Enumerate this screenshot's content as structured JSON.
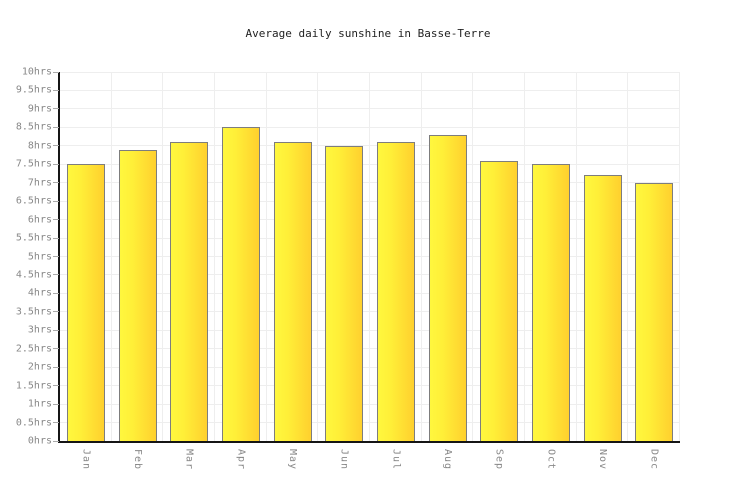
{
  "chart_data": {
    "type": "bar",
    "title": "Average daily sunshine in Basse-Terre",
    "categories": [
      "Jan",
      "Feb",
      "Mar",
      "Apr",
      "May",
      "Jun",
      "Jul",
      "Aug",
      "Sep",
      "Oct",
      "Nov",
      "Dec"
    ],
    "values": [
      7.5,
      7.9,
      8.1,
      8.5,
      8.1,
      8.0,
      8.1,
      8.3,
      7.6,
      7.5,
      7.2,
      7.0
    ],
    "unit_suffix": "hrs",
    "xlabel": "",
    "ylabel": "",
    "ylim": [
      0,
      10
    ],
    "ytick_step": 0.5,
    "grid": true,
    "legend": false,
    "colors": {
      "bar_fill_left": "#fff73e",
      "bar_fill_right": "#ffd02e",
      "bar_border": "#7d7d7d",
      "gridline": "#eeeeee",
      "axis": "#151515",
      "tick": "#aaaaaa",
      "axis_label": "#888888",
      "title": "#222222",
      "background": "#ffffff"
    }
  }
}
